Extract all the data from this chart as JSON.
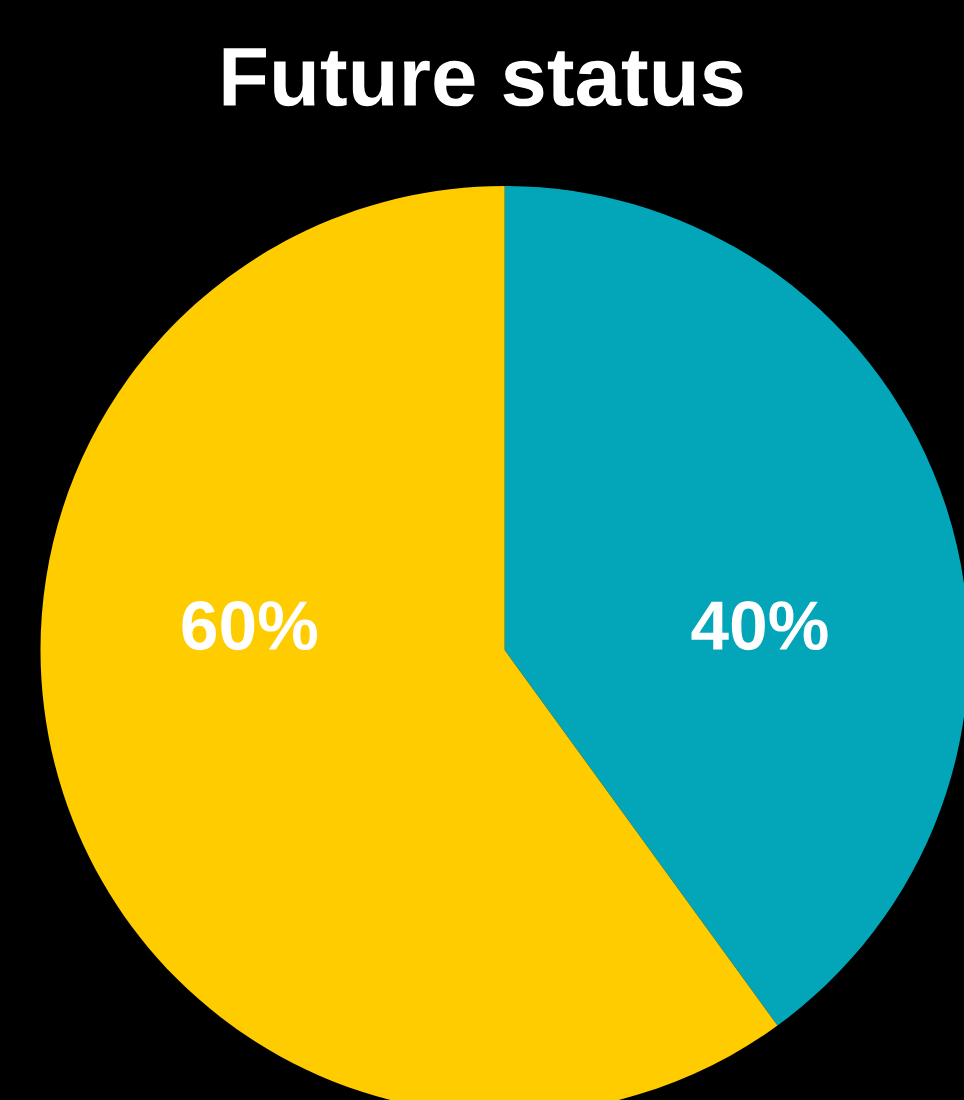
{
  "chart_data": {
    "type": "pie",
    "title": "Future status",
    "categories": [
      null,
      null
    ],
    "values": [
      40,
      60
    ],
    "colors": [
      "#02a6b8",
      "#ffcc00"
    ],
    "value_labels": [
      "40%",
      "60%"
    ]
  }
}
